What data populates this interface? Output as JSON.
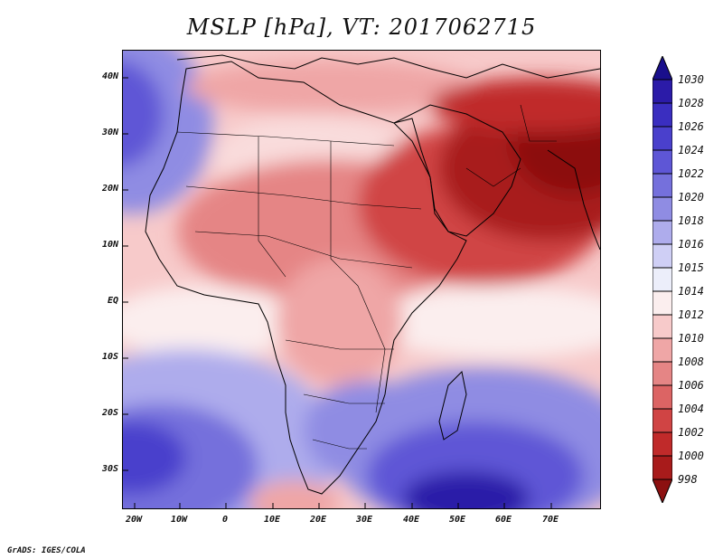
{
  "title": "MSLP [hPa], VT: 2017062715",
  "credit": "GrADS: IGES/COLA",
  "axes": {
    "lat_labels": [
      "40N",
      "30N",
      "20N",
      "10N",
      "EQ",
      "10S",
      "20S",
      "30S"
    ],
    "lon_labels": [
      "20W",
      "10W",
      "0",
      "10E",
      "20E",
      "30E",
      "40E",
      "50E",
      "60E",
      "70E"
    ]
  },
  "colorbar": {
    "labels": [
      "1030",
      "1028",
      "1026",
      "1024",
      "1022",
      "1020",
      "1018",
      "1016",
      "1015",
      "1014",
      "1012",
      "1010",
      "1008",
      "1006",
      "1004",
      "1002",
      "1000",
      "998"
    ],
    "colors": [
      "#1a0f8c",
      "#2b1ba8",
      "#3a2ec0",
      "#4a40cc",
      "#5e56d6",
      "#7570dc",
      "#8f8ce3",
      "#aeacec",
      "#cfcff5",
      "#eceefa",
      "#fbeeee",
      "#f7caca",
      "#efa6a6",
      "#e58585",
      "#dc6464",
      "#d04444",
      "#c02a2a",
      "#a81b1b",
      "#8c1010"
    ]
  }
}
